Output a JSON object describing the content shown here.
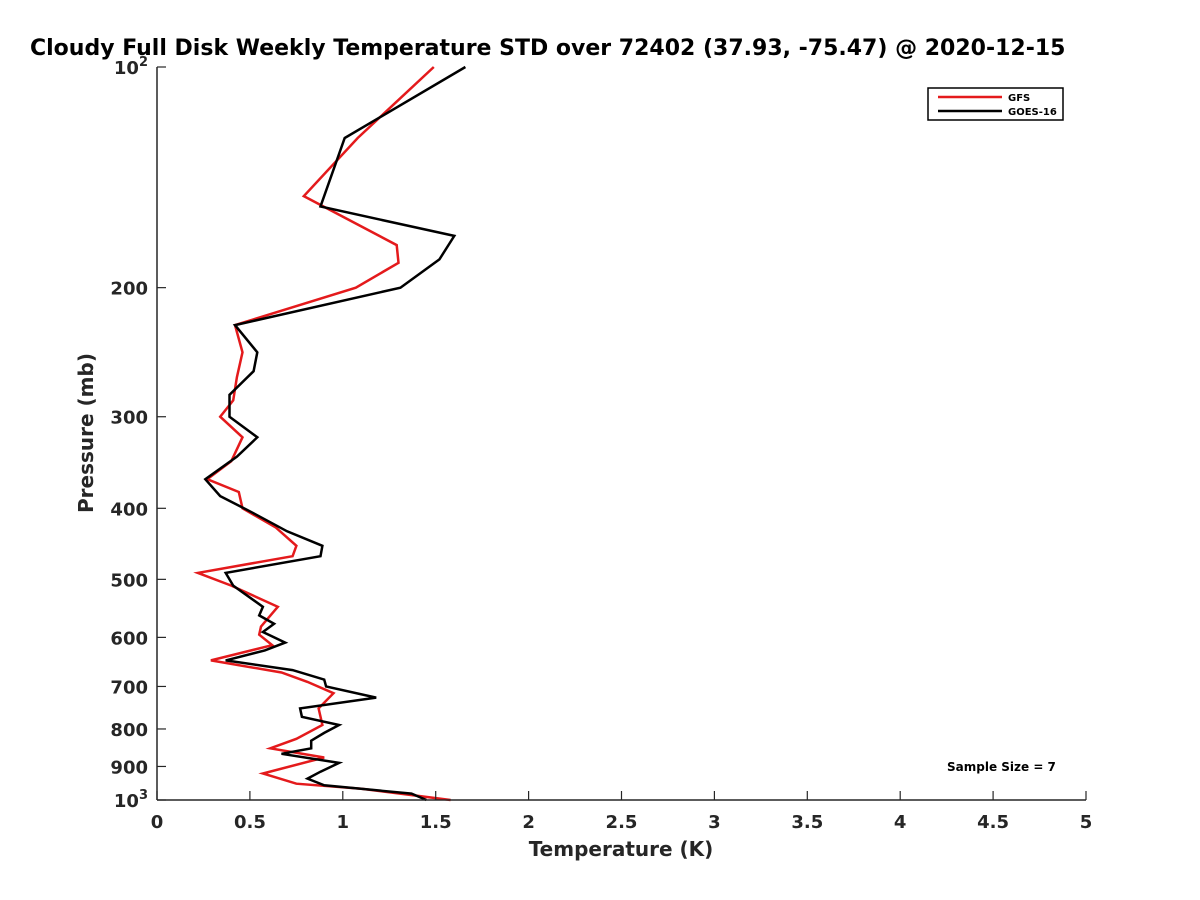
{
  "chart_data": {
    "type": "line",
    "title": "Cloudy Full Disk Weekly Temperature STD over 72402 (37.93, -75.47) @ 2020-12-15",
    "xlabel": "Temperature (K)",
    "ylabel": "Pressure (mb)",
    "xlim": [
      0,
      5
    ],
    "ylim": [
      100,
      1000
    ],
    "y_scale": "log",
    "y_reversed": true,
    "grid": false,
    "legend_position": "top-right",
    "x_ticks": [
      "0",
      "0.5",
      "1",
      "1.5",
      "2",
      "2.5",
      "3",
      "3.5",
      "4",
      "4.5",
      "5"
    ],
    "y_ticks": [
      {
        "value": 100,
        "label": "10",
        "sup": "2"
      },
      {
        "value": 200,
        "label": "200",
        "sup": ""
      },
      {
        "value": 300,
        "label": "300",
        "sup": ""
      },
      {
        "value": 400,
        "label": "400",
        "sup": ""
      },
      {
        "value": 500,
        "label": "500",
        "sup": ""
      },
      {
        "value": 600,
        "label": "600",
        "sup": ""
      },
      {
        "value": 700,
        "label": "700",
        "sup": ""
      },
      {
        "value": 800,
        "label": "800",
        "sup": ""
      },
      {
        "value": 900,
        "label": "900",
        "sup": ""
      },
      {
        "value": 1000,
        "label": "10",
        "sup": "3"
      }
    ],
    "series": [
      {
        "name": "GFS",
        "color": "#e41a1c",
        "points": [
          [
            1.49,
            100
          ],
          [
            1.08,
            125
          ],
          [
            0.79,
            150
          ],
          [
            1.29,
            175
          ],
          [
            1.3,
            185
          ],
          [
            1.07,
            200
          ],
          [
            0.42,
            225
          ],
          [
            0.46,
            245
          ],
          [
            0.43,
            265
          ],
          [
            0.41,
            285
          ],
          [
            0.34,
            300
          ],
          [
            0.46,
            320
          ],
          [
            0.4,
            345
          ],
          [
            0.27,
            365
          ],
          [
            0.44,
            380
          ],
          [
            0.46,
            400
          ],
          [
            0.64,
            425
          ],
          [
            0.75,
            450
          ],
          [
            0.73,
            465
          ],
          [
            0.22,
            490
          ],
          [
            0.4,
            510
          ],
          [
            0.65,
            545
          ],
          [
            0.56,
            580
          ],
          [
            0.55,
            595
          ],
          [
            0.62,
            615
          ],
          [
            0.29,
            645
          ],
          [
            0.67,
            670
          ],
          [
            0.81,
            690
          ],
          [
            0.95,
            715
          ],
          [
            0.87,
            750
          ],
          [
            0.89,
            790
          ],
          [
            0.75,
            825
          ],
          [
            0.61,
            850
          ],
          [
            0.9,
            875
          ],
          [
            0.57,
            920
          ],
          [
            0.75,
            950
          ],
          [
            1.1,
            965
          ],
          [
            1.58,
            1000
          ]
        ]
      },
      {
        "name": "GOES-16",
        "color": "#000000",
        "points": [
          [
            1.66,
            100
          ],
          [
            1.01,
            125
          ],
          [
            0.88,
            155
          ],
          [
            1.6,
            170
          ],
          [
            1.52,
            183
          ],
          [
            1.31,
            200
          ],
          [
            0.42,
            225
          ],
          [
            0.54,
            245
          ],
          [
            0.52,
            260
          ],
          [
            0.39,
            280
          ],
          [
            0.39,
            300
          ],
          [
            0.54,
            320
          ],
          [
            0.43,
            340
          ],
          [
            0.26,
            365
          ],
          [
            0.34,
            385
          ],
          [
            0.51,
            405
          ],
          [
            0.7,
            430
          ],
          [
            0.89,
            450
          ],
          [
            0.88,
            465
          ],
          [
            0.37,
            490
          ],
          [
            0.41,
            510
          ],
          [
            0.57,
            545
          ],
          [
            0.55,
            560
          ],
          [
            0.63,
            575
          ],
          [
            0.57,
            590
          ],
          [
            0.69,
            610
          ],
          [
            0.58,
            625
          ],
          [
            0.37,
            645
          ],
          [
            0.73,
            665
          ],
          [
            0.9,
            685
          ],
          [
            0.91,
            700
          ],
          [
            1.18,
            725
          ],
          [
            0.77,
            750
          ],
          [
            0.78,
            770
          ],
          [
            0.98,
            790
          ],
          [
            0.9,
            810
          ],
          [
            0.83,
            830
          ],
          [
            0.83,
            850
          ],
          [
            0.67,
            865
          ],
          [
            0.98,
            890
          ],
          [
            0.88,
            915
          ],
          [
            0.81,
            935
          ],
          [
            0.9,
            955
          ],
          [
            1.37,
            980
          ],
          [
            1.45,
            1000
          ]
        ]
      }
    ],
    "annotations": [
      {
        "text": "Sample Size = 7"
      }
    ]
  }
}
